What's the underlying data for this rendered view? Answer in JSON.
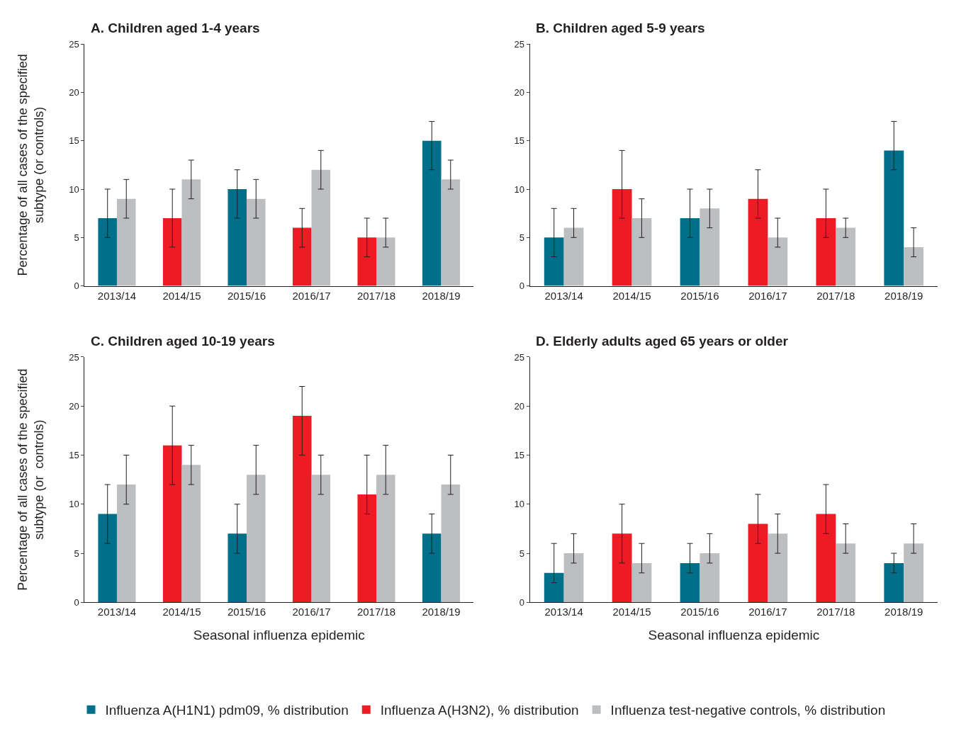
{
  "chart_data": [
    {
      "type": "bar",
      "title": "A. Children aged 1-4 years",
      "ylabel": "Percentage of all cases of the specified\nsubtype (or controls)",
      "categories": [
        "2013/14",
        "2014/15",
        "2015/16",
        "2016/17",
        "2017/18",
        "2018/19"
      ],
      "ylim": [
        0,
        25
      ],
      "yticks": [
        0,
        5,
        10,
        15,
        20,
        25
      ],
      "legend": "bottom",
      "series": [
        {
          "name": "Influenza A(H1N1) pdm09, % distribution",
          "color": "#006f8a",
          "values": [
            7,
            null,
            10,
            null,
            null,
            15
          ],
          "errors": [
            [
              5,
              10
            ],
            null,
            [
              7,
              12
            ],
            null,
            null,
            [
              12,
              17
            ]
          ]
        },
        {
          "name": "Influenza A(H3N2), % distribution",
          "color": "#ed1c24",
          "values": [
            null,
            7,
            null,
            6,
            5,
            null
          ],
          "errors": [
            null,
            [
              4,
              10
            ],
            null,
            [
              4,
              8
            ],
            [
              3,
              7
            ],
            null
          ]
        },
        {
          "name": "Influenza test-negative controls, % distribution",
          "color": "#bcbec0",
          "values": [
            9,
            11,
            9,
            12,
            5,
            11
          ],
          "errors": [
            [
              7,
              11
            ],
            [
              9,
              13
            ],
            [
              7,
              11
            ],
            [
              10,
              14
            ],
            [
              4,
              7
            ],
            [
              10,
              13
            ]
          ]
        }
      ]
    },
    {
      "type": "bar",
      "title": "B. Children aged 5-9 years",
      "categories": [
        "2013/14",
        "2014/15",
        "2015/16",
        "2016/17",
        "2017/18",
        "2018/19"
      ],
      "ylim": [
        0,
        25
      ],
      "yticks": [
        0,
        5,
        10,
        15,
        20,
        25
      ],
      "series": [
        {
          "color": "#006f8a",
          "values": [
            5,
            null,
            7,
            null,
            null,
            14
          ],
          "errors": [
            [
              3,
              8
            ],
            null,
            [
              5,
              10
            ],
            null,
            null,
            [
              12,
              17
            ]
          ]
        },
        {
          "color": "#ed1c24",
          "values": [
            null,
            10,
            null,
            9,
            7,
            null
          ],
          "errors": [
            null,
            [
              7,
              14
            ],
            null,
            [
              7,
              12
            ],
            [
              5,
              10
            ],
            null
          ]
        },
        {
          "color": "#bcbec0",
          "values": [
            6,
            7,
            8,
            5,
            6,
            4
          ],
          "errors": [
            [
              5,
              8
            ],
            [
              5,
              9
            ],
            [
              6,
              10
            ],
            [
              4,
              7
            ],
            [
              5,
              7
            ],
            [
              3,
              6
            ]
          ]
        }
      ]
    },
    {
      "type": "bar",
      "title": "C. Children aged 10-19 years",
      "ylabel": "Percentage of all cases of the specified\nsubtype (or  controls)",
      "xlabel": "Seasonal influenza epidemic",
      "categories": [
        "2013/14",
        "2014/15",
        "2015/16",
        "2016/17",
        "2017/18",
        "2018/19"
      ],
      "ylim": [
        0,
        25
      ],
      "yticks": [
        0,
        5,
        10,
        15,
        20,
        25
      ],
      "series": [
        {
          "color": "#006f8a",
          "values": [
            9,
            null,
            7,
            null,
            null,
            7
          ],
          "errors": [
            [
              6,
              12
            ],
            null,
            [
              5,
              10
            ],
            null,
            null,
            [
              5,
              9
            ]
          ]
        },
        {
          "color": "#ed1c24",
          "values": [
            null,
            16,
            null,
            19,
            11,
            null
          ],
          "errors": [
            null,
            [
              12,
              20
            ],
            null,
            [
              15,
              22
            ],
            [
              9,
              15
            ],
            null
          ]
        },
        {
          "color": "#bcbec0",
          "values": [
            12,
            14,
            13,
            13,
            13,
            12
          ],
          "errors": [
            [
              10,
              15
            ],
            [
              12,
              16
            ],
            [
              11,
              16
            ],
            [
              11,
              15
            ],
            [
              11,
              16
            ],
            [
              11,
              15
            ]
          ]
        }
      ]
    },
    {
      "type": "bar",
      "title": "D. Elderly adults aged 65 years or older",
      "xlabel": "Seasonal influenza epidemic",
      "categories": [
        "2013/14",
        "2014/15",
        "2015/16",
        "2016/17",
        "2017/18",
        "2018/19"
      ],
      "ylim": [
        0,
        25
      ],
      "yticks": [
        0,
        5,
        10,
        15,
        20,
        25
      ],
      "series": [
        {
          "color": "#006f8a",
          "values": [
            3,
            null,
            4,
            null,
            null,
            4
          ],
          "errors": [
            [
              2,
              6
            ],
            null,
            [
              3,
              6
            ],
            null,
            null,
            [
              3,
              5
            ]
          ]
        },
        {
          "color": "#ed1c24",
          "values": [
            null,
            7,
            null,
            8,
            9,
            null
          ],
          "errors": [
            null,
            [
              4,
              10
            ],
            null,
            [
              6,
              11
            ],
            [
              7,
              12
            ],
            null
          ]
        },
        {
          "color": "#bcbec0",
          "values": [
            5,
            4,
            5,
            7,
            6,
            6
          ],
          "errors": [
            [
              4,
              7
            ],
            [
              3,
              6
            ],
            [
              4,
              7
            ],
            [
              5,
              9
            ],
            [
              5,
              8
            ],
            [
              5,
              8
            ]
          ]
        }
      ]
    }
  ]
}
